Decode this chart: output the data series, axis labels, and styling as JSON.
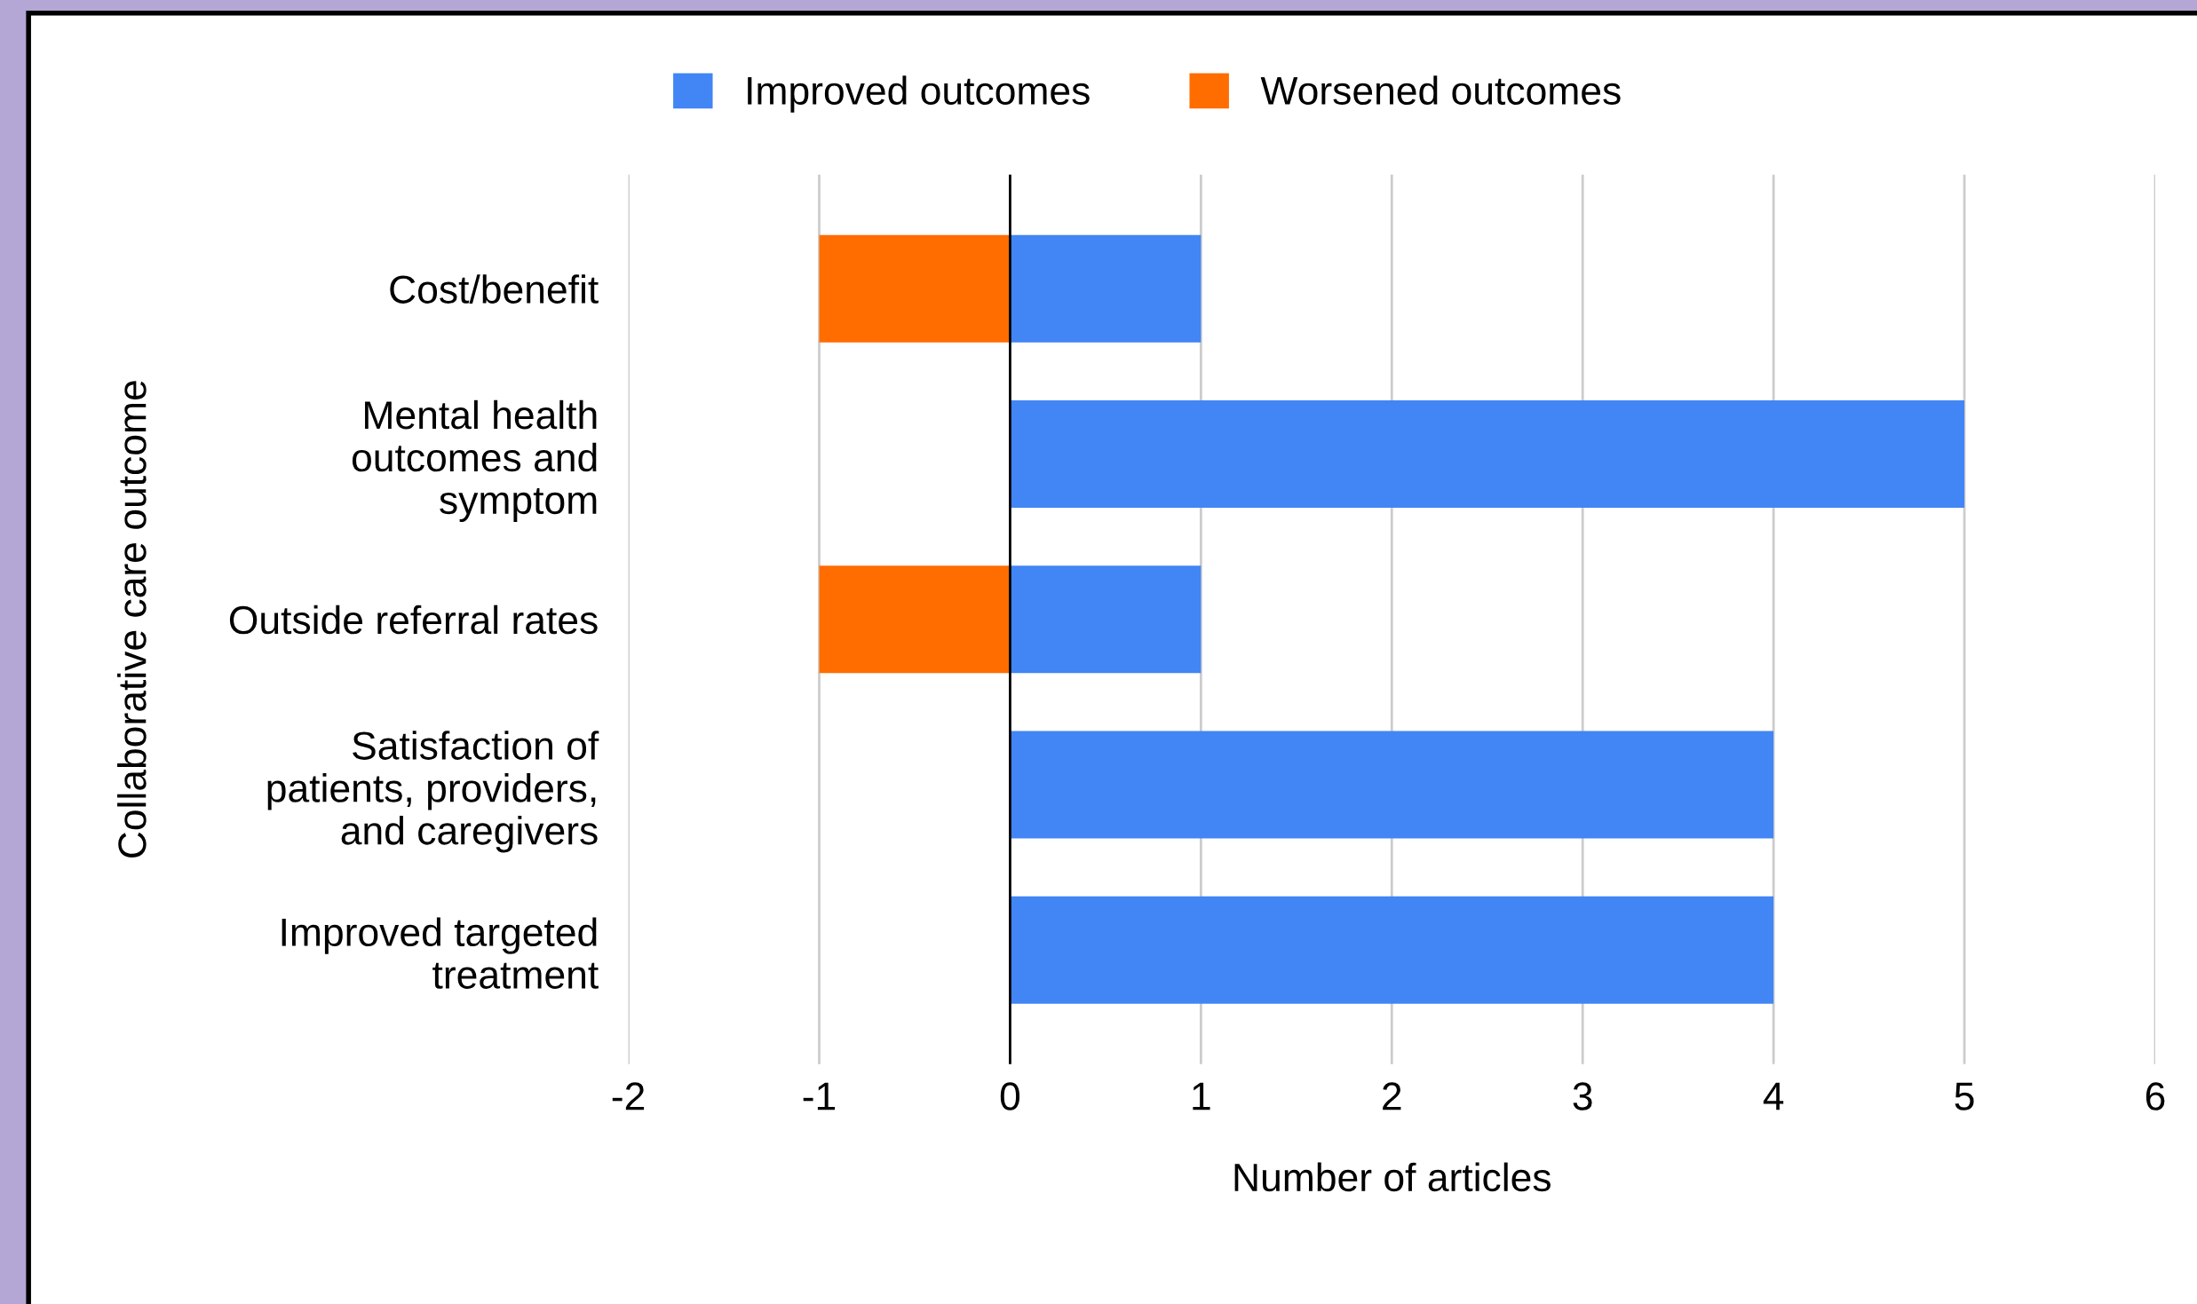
{
  "chart_data": {
    "type": "bar",
    "orientation": "horizontal",
    "stacked": true,
    "categories": [
      "Cost/benefit",
      "Mental health\noutcomes and\nsymptom",
      "Outside referral rates",
      "Satisfaction of\npatients, providers,\nand caregivers",
      "Improved targeted\ntreatment"
    ],
    "series": [
      {
        "name": "Improved outcomes",
        "color": "#4285f4",
        "values": [
          1,
          5,
          1,
          4,
          4
        ]
      },
      {
        "name": "Worsened outcomes",
        "color": "#ff6d01",
        "values": [
          -1,
          null,
          -1,
          null,
          null
        ]
      }
    ],
    "xlim": [
      -2,
      6
    ],
    "xticks": [
      -2,
      -1,
      0,
      1,
      2,
      3,
      4,
      5,
      6
    ],
    "xlabel": "Number of articles",
    "ylabel": "Collaborative care outcome",
    "grid": "x",
    "legend": "top",
    "ref_lines": [
      {
        "axis": "x",
        "value": 0,
        "color": "#000000"
      }
    ]
  }
}
